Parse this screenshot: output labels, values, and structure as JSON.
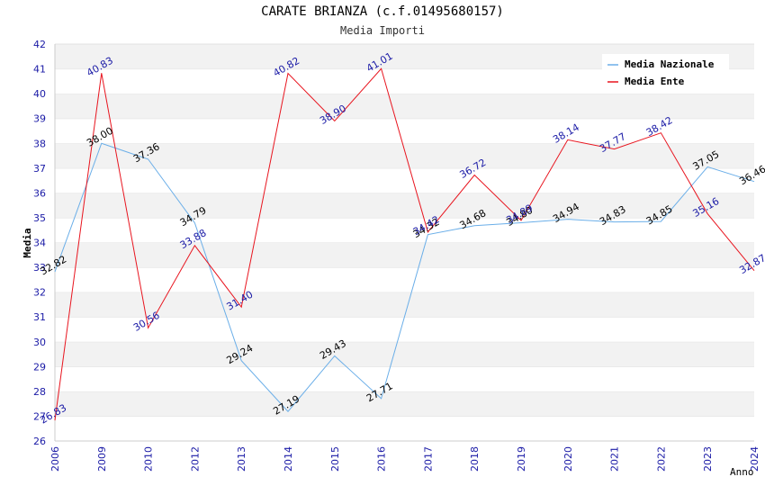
{
  "chart_data": {
    "type": "line",
    "title": "CARATE BRIANZA (c.f.01495680157)",
    "subtitle": "Media Importi",
    "xlabel": "Anno",
    "ylabel": "Media",
    "categories": [
      "2006",
      "2009",
      "2010",
      "2012",
      "2013",
      "2014",
      "2015",
      "2016",
      "2017",
      "2018",
      "2019",
      "2020",
      "2021",
      "2022",
      "2023",
      "2024"
    ],
    "ylim": [
      26,
      42
    ],
    "yticks": [
      26,
      27,
      28,
      29,
      30,
      31,
      32,
      33,
      34,
      35,
      36,
      37,
      38,
      39,
      40,
      41,
      42
    ],
    "series": [
      {
        "name": "Media Nazionale",
        "color": "#6aaee8",
        "values": [
          32.82,
          38.0,
          37.36,
          34.79,
          29.24,
          27.19,
          29.43,
          27.71,
          34.32,
          34.68,
          34.8,
          34.94,
          34.83,
          34.85,
          37.05,
          36.46
        ],
        "labels": [
          "32.82",
          "38.00",
          "37.36",
          "34.79",
          "29.24",
          "27.19",
          "29.43",
          "27.71",
          "34.32",
          "34.68",
          "34.80",
          "34.94",
          "34.83",
          "34.85",
          "37.05",
          "36.46"
        ]
      },
      {
        "name": "Media Ente",
        "color": "#e8141e",
        "values": [
          26.83,
          40.83,
          30.56,
          33.88,
          31.4,
          40.82,
          38.9,
          41.01,
          34.42,
          36.72,
          34.89,
          38.14,
          37.77,
          38.42,
          35.16,
          32.87
        ],
        "labels": [
          "26.83",
          "40.83",
          "30.56",
          "33.88",
          "31.40",
          "40.82",
          "38.90",
          "41.01",
          "34.42",
          "36.72",
          "34.89",
          "38.14",
          "37.77",
          "38.42",
          "35.16",
          "32.87"
        ]
      }
    ],
    "legend": {
      "position": "top-right"
    },
    "grid": true
  }
}
